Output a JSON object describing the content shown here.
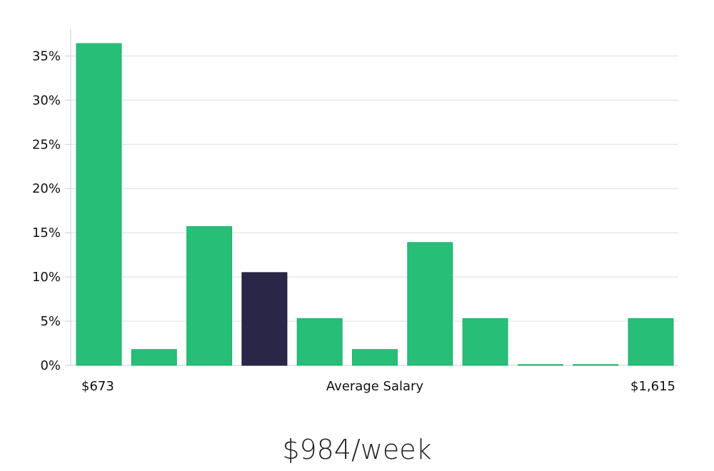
{
  "chart_data": {
    "type": "bar",
    "ylim": [
      0,
      38
    ],
    "yticks": [
      0,
      5,
      10,
      15,
      20,
      25,
      30,
      35
    ],
    "ytick_labels": [
      "0%",
      "5%",
      "10%",
      "15%",
      "20%",
      "25%",
      "30%",
      "35%"
    ],
    "values": [
      36.4,
      1.8,
      15.7,
      10.5,
      5.3,
      1.8,
      13.9,
      5.3,
      0.1,
      0.1,
      5.3
    ],
    "highlight_index": 3,
    "x_min_label": "$673",
    "xlabel": "Average Salary",
    "x_max_label": "$1,615",
    "grid": true,
    "colors": {
      "bar": "#27be78",
      "highlight": "#2a2647",
      "grid": "#dddddd",
      "axis": "#cccccc"
    }
  },
  "summary": "$984/week"
}
